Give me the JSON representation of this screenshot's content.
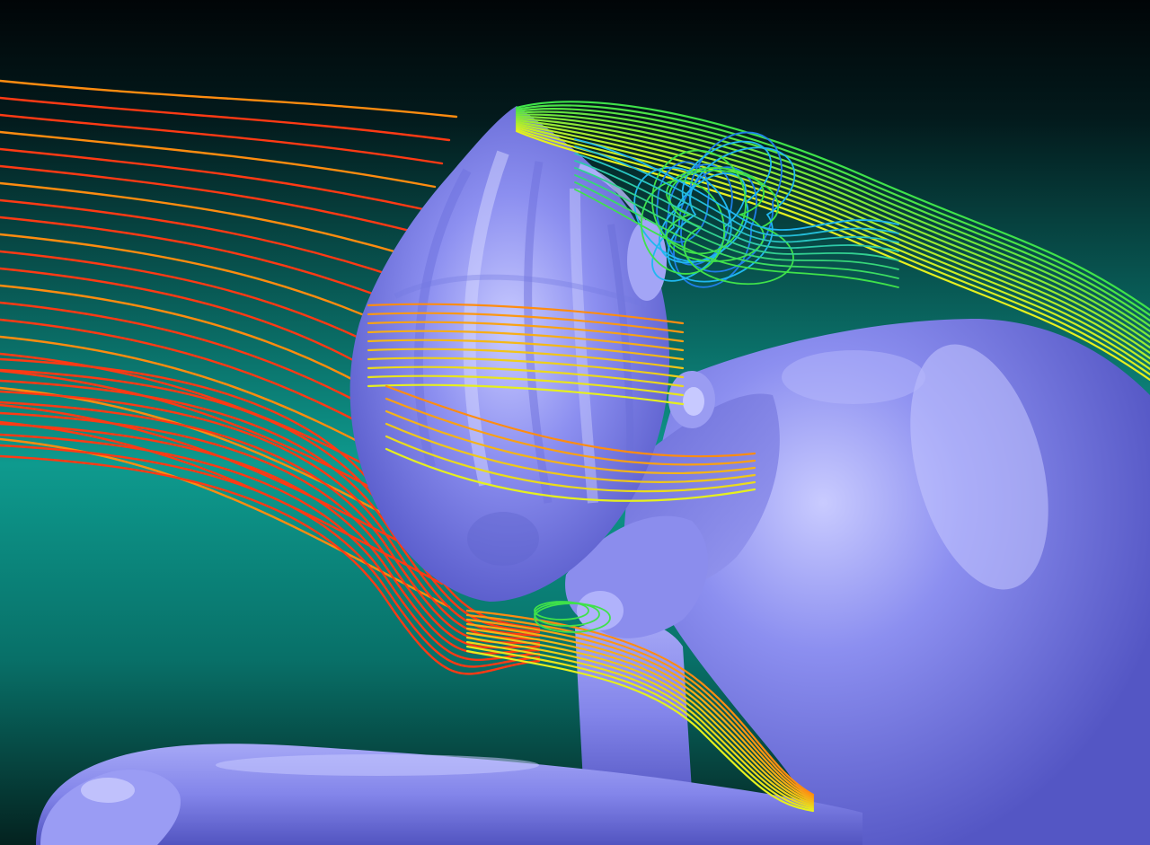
{
  "scene": {
    "subject": "cfd-streamlines-over-helmeted-cyclist",
    "colors": {
      "background_top": "#010507",
      "background_mid": "#0e9a8e",
      "background_bottom": "#04221f",
      "body": "#8c8ff0",
      "body_highlight": "#c9cbff",
      "body_shadow": "#4a4cc0",
      "stream_fast": "#ff3a14",
      "stream_orange": "#ff8c10",
      "stream_yellow": "#e6f01e",
      "stream_green": "#3fe24a",
      "stream_cyan": "#20b8f0",
      "stream_blue": "#1f7fe8"
    }
  }
}
